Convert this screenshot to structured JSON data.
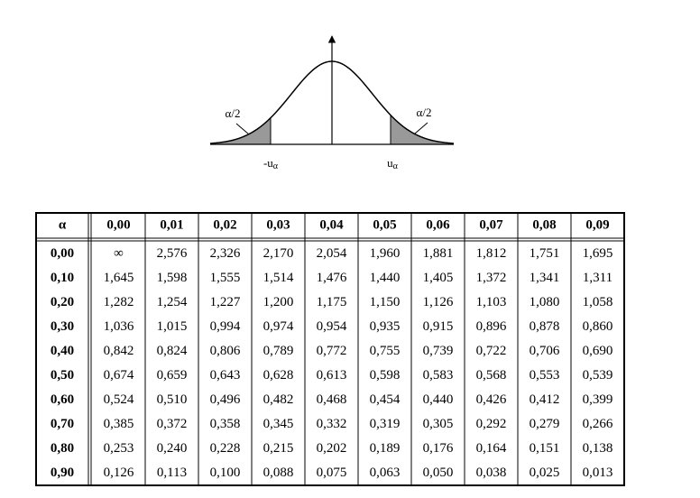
{
  "diagram": {
    "left_area": "α/2",
    "right_area": "α/2",
    "left_quantile": {
      "base": "-u",
      "sub": "α"
    },
    "right_quantile": {
      "base": "u",
      "sub": "α"
    }
  },
  "table": {
    "header": [
      "α",
      "0,00",
      "0,01",
      "0,02",
      "0,03",
      "0,04",
      "0,05",
      "0,06",
      "0,07",
      "0,08",
      "0,09"
    ],
    "rows": [
      [
        "0,00",
        "∞",
        "2,576",
        "2,326",
        "2,170",
        "2,054",
        "1,960",
        "1,881",
        "1,812",
        "1,751",
        "1,695"
      ],
      [
        "0,10",
        "1,645",
        "1,598",
        "1,555",
        "1,514",
        "1,476",
        "1,440",
        "1,405",
        "1,372",
        "1,341",
        "1,311"
      ],
      [
        "0,20",
        "1,282",
        "1,254",
        "1,227",
        "1,200",
        "1,175",
        "1,150",
        "1,126",
        "1,103",
        "1,080",
        "1,058"
      ],
      [
        "0,30",
        "1,036",
        "1,015",
        "0,994",
        "0,974",
        "0,954",
        "0,935",
        "0,915",
        "0,896",
        "0,878",
        "0,860"
      ],
      [
        "0,40",
        "0,842",
        "0,824",
        "0,806",
        "0,789",
        "0,772",
        "0,755",
        "0,739",
        "0,722",
        "0,706",
        "0,690"
      ],
      [
        "0,50",
        "0,674",
        "0,659",
        "0,643",
        "0,628",
        "0,613",
        "0,598",
        "0,583",
        "0,568",
        "0,553",
        "0,539"
      ],
      [
        "0,60",
        "0,524",
        "0,510",
        "0,496",
        "0,482",
        "0,468",
        "0,454",
        "0,440",
        "0,426",
        "0,412",
        "0,399"
      ],
      [
        "0,70",
        "0,385",
        "0,372",
        "0,358",
        "0,345",
        "0,332",
        "0,319",
        "0,305",
        "0,292",
        "0,279",
        "0,266"
      ],
      [
        "0,80",
        "0,253",
        "0,240",
        "0,228",
        "0,215",
        "0,202",
        "0,189",
        "0,176",
        "0,164",
        "0,151",
        "0,138"
      ],
      [
        "0,90",
        "0,126",
        "0,113",
        "0,100",
        "0,088",
        "0,075",
        "0,063",
        "0,050",
        "0,038",
        "0,025",
        "0,013"
      ]
    ]
  }
}
